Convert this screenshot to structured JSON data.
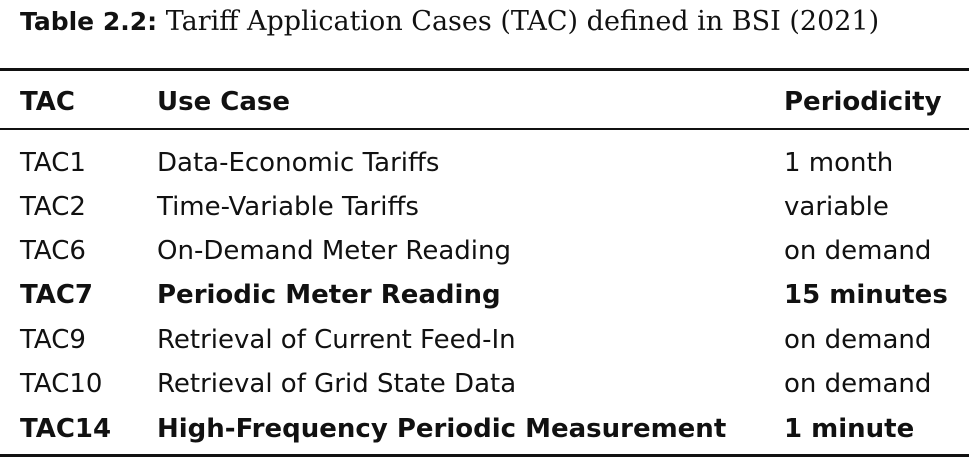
{
  "caption": {
    "label": "Table 2.2:",
    "text": "Tariff Application Cases (TAC) defined in BSI (2021)"
  },
  "table": {
    "headers": [
      "TAC",
      "Use Case",
      "Periodicity"
    ],
    "rows": [
      {
        "tac": "TAC1",
        "use_case": "Data-Economic Tariffs",
        "periodicity": "1 month",
        "bold": false
      },
      {
        "tac": "TAC2",
        "use_case": "Time-Variable Tariffs",
        "periodicity": "variable",
        "bold": false
      },
      {
        "tac": "TAC6",
        "use_case": "On-Demand Meter Reading",
        "periodicity": "on demand",
        "bold": false
      },
      {
        "tac": "TAC7",
        "use_case": "Periodic Meter Reading",
        "periodicity": "15 minutes",
        "bold": true
      },
      {
        "tac": "TAC9",
        "use_case": "Retrieval of Current Feed-In",
        "periodicity": "on demand",
        "bold": false
      },
      {
        "tac": "TAC10",
        "use_case": "Retrieval of Grid State Data",
        "periodicity": "on demand",
        "bold": false
      },
      {
        "tac": "TAC14",
        "use_case": "High-Frequency Periodic Measurement",
        "periodicity": "1 minute",
        "bold": true
      }
    ]
  }
}
